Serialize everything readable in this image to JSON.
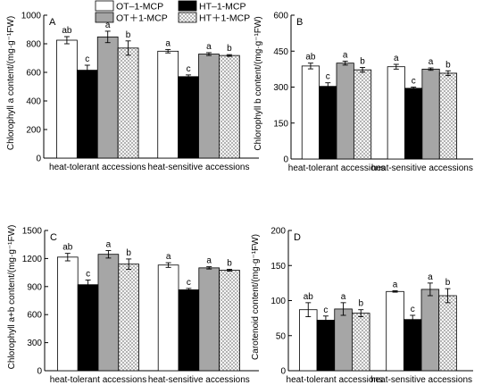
{
  "legend": [
    {
      "label": "OT–1-MCP",
      "fill": "white"
    },
    {
      "label": "HT–1-MCP",
      "fill": "black"
    },
    {
      "label": "OT＋1-MCP",
      "fill": "gray"
    },
    {
      "label": "HT＋1-MCP",
      "fill": "hatch"
    }
  ],
  "colors": {
    "white": "#ffffff",
    "black": "#000000",
    "gray": "#a6a6a6",
    "hatch": "#ffffff"
  },
  "chart_data": [
    {
      "panel": "A",
      "type": "bar",
      "ylabel": "Chlorophyll a content/(mg·g⁻¹FW)",
      "categories": [
        "heat-tolerant accessions",
        "heat-sensitive accessions"
      ],
      "ylim": [
        0,
        1000
      ],
      "yticks": [
        0,
        200,
        400,
        600,
        800,
        1000
      ],
      "series": [
        {
          "name": "OT–1-MCP",
          "values": [
            825,
            748
          ],
          "errors": [
            25,
            12
          ],
          "letters": [
            "ab",
            "a"
          ]
        },
        {
          "name": "HT–1-MCP",
          "values": [
            615,
            570
          ],
          "errors": [
            35,
            12
          ],
          "letters": [
            "c",
            "c"
          ]
        },
        {
          "name": "OT＋1-MCP",
          "values": [
            848,
            728
          ],
          "errors": [
            40,
            10
          ],
          "letters": [
            "a",
            "a"
          ]
        },
        {
          "name": "HT＋1-MCP",
          "values": [
            770,
            718
          ],
          "errors": [
            50,
            6
          ],
          "letters": [
            "b",
            "b"
          ]
        }
      ]
    },
    {
      "panel": "B",
      "type": "bar",
      "ylabel": "Chlorophyll b content/(mg·g⁻¹FW)",
      "categories": [
        "heat-tolerant accessions",
        "heat-sensitive accessions"
      ],
      "ylim": [
        0,
        600
      ],
      "yticks": [
        0,
        150,
        300,
        450,
        600
      ],
      "series": [
        {
          "name": "OT–1-MCP",
          "values": [
            388,
            385
          ],
          "errors": [
            12,
            10
          ],
          "letters": [
            "ab",
            "a"
          ]
        },
        {
          "name": "HT–1-MCP",
          "values": [
            303,
            295
          ],
          "errors": [
            15,
            5
          ],
          "letters": [
            "c",
            "c"
          ]
        },
        {
          "name": "OT＋1-MCP",
          "values": [
            400,
            375
          ],
          "errors": [
            8,
            5
          ],
          "letters": [
            "a",
            "a"
          ]
        },
        {
          "name": "HT＋1-MCP",
          "values": [
            372,
            358
          ],
          "errors": [
            10,
            10
          ],
          "letters": [
            "b",
            "b"
          ]
        }
      ]
    },
    {
      "panel": "C",
      "type": "bar",
      "ylabel": "Chlorophyll a+b content/(mg·g⁻¹FW)",
      "categories": [
        "heat-tolerant accessions",
        "heat-sensitive accessions"
      ],
      "ylim": [
        0,
        1500
      ],
      "yticks": [
        0,
        300,
        600,
        900,
        1200,
        1500
      ],
      "series": [
        {
          "name": "OT–1-MCP",
          "values": [
            1215,
            1130
          ],
          "errors": [
            40,
            25
          ],
          "letters": [
            "ab",
            "a"
          ]
        },
        {
          "name": "HT–1-MCP",
          "values": [
            920,
            865
          ],
          "errors": [
            50,
            15
          ],
          "letters": [
            "c",
            "c"
          ]
        },
        {
          "name": "OT＋1-MCP",
          "values": [
            1245,
            1100
          ],
          "errors": [
            40,
            12
          ],
          "letters": [
            "a",
            "a"
          ]
        },
        {
          "name": "HT＋1-MCP",
          "values": [
            1140,
            1075
          ],
          "errors": [
            55,
            10
          ],
          "letters": [
            "b",
            "b"
          ]
        }
      ]
    },
    {
      "panel": "D",
      "type": "bar",
      "ylabel": "Carotenoid content/(mg·g⁻¹FW)",
      "categories": [
        "heat-tolerant accessions",
        "heat-sensitive accessions"
      ],
      "ylim": [
        0,
        200
      ],
      "yticks": [
        0,
        50,
        100,
        150,
        200
      ],
      "series": [
        {
          "name": "OT–1-MCP",
          "values": [
            87,
            113
          ],
          "errors": [
            10,
            1
          ],
          "letters": [
            "ab",
            "a"
          ]
        },
        {
          "name": "HT–1-MCP",
          "values": [
            72,
            73
          ],
          "errors": [
            6,
            6
          ],
          "letters": [
            "c",
            "c"
          ]
        },
        {
          "name": "OT＋1-MCP",
          "values": [
            88,
            116
          ],
          "errors": [
            9,
            9
          ],
          "letters": [
            "a",
            "a"
          ]
        },
        {
          "name": "HT＋1-MCP",
          "values": [
            82,
            107
          ],
          "errors": [
            5,
            10
          ],
          "letters": [
            "b",
            "b"
          ]
        }
      ]
    }
  ]
}
